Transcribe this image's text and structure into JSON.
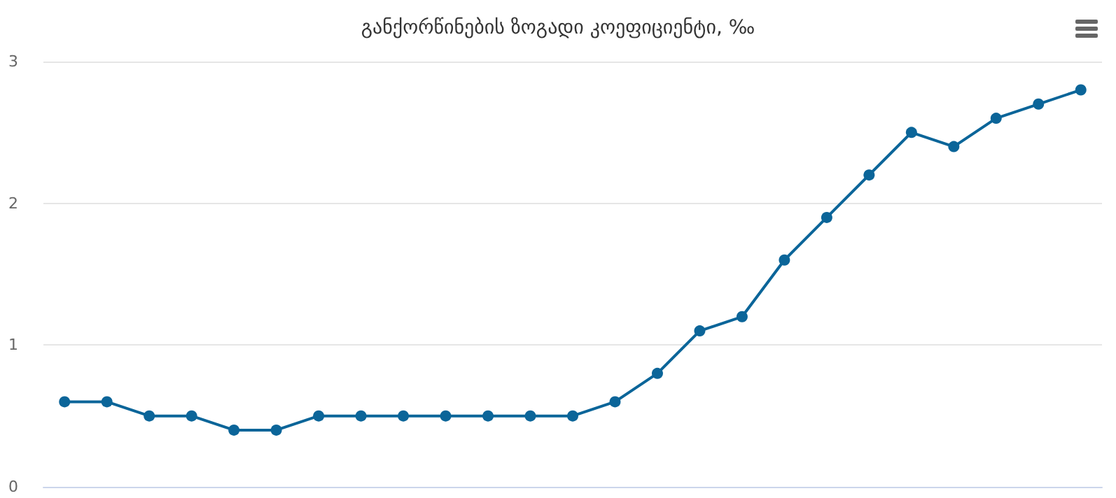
{
  "chart_data": {
    "type": "line",
    "title": "განქორწინების ზოგადი კოეფიციენტი, ‰",
    "categories": [
      null,
      null,
      null,
      null,
      null,
      null,
      null,
      null,
      null,
      null,
      null,
      null,
      null,
      null,
      null,
      null,
      null,
      null,
      null,
      null,
      null,
      null,
      null,
      null,
      null
    ],
    "series": [
      {
        "color": "#0b6599",
        "values": [
          0.6,
          0.6,
          0.5,
          0.5,
          0.4,
          0.4,
          0.5,
          0.5,
          0.5,
          0.5,
          0.5,
          0.5,
          0.5,
          0.6,
          0.8,
          1.1,
          1.2,
          1.6,
          1.9,
          2.2,
          2.5,
          2.4,
          2.6,
          2.7,
          2.8
        ]
      }
    ],
    "ylim": [
      0,
      3
    ],
    "yticks": [
      0,
      1,
      2,
      3
    ],
    "grid": "y",
    "marker": "circle",
    "line_style": "solid"
  }
}
